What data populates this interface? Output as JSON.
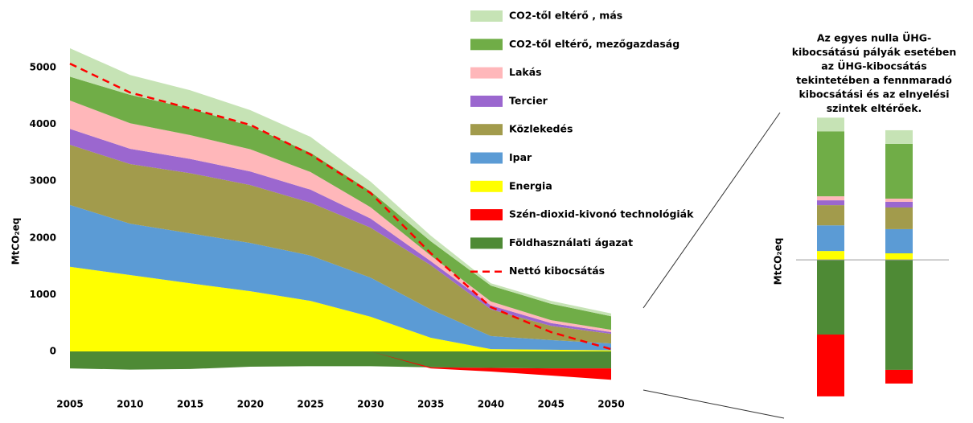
{
  "chart_data": [
    {
      "type": "area",
      "y_label": "MtCO₂eq",
      "x": [
        2005,
        2010,
        2015,
        2020,
        2025,
        2030,
        2035,
        2040,
        2045,
        2050
      ],
      "xlim": [
        2005,
        2050
      ],
      "ylim": [
        -700,
        5400
      ],
      "yticks": [
        0,
        1000,
        2000,
        3000,
        4000,
        5000
      ],
      "grid": false,
      "legend": "right",
      "series": [
        {
          "name": "CO2-től eltérő , más",
          "color": "#c6e3b5",
          "values": [
            500,
            350,
            320,
            280,
            280,
            170,
            100,
            40,
            50,
            50
          ]
        },
        {
          "name": "CO2-től eltérő, mezőgazdaság",
          "color": "#70ad47",
          "values": [
            420,
            500,
            470,
            410,
            340,
            280,
            250,
            280,
            290,
            240
          ]
        },
        {
          "name": "Lakás",
          "color": "#ffb7ba",
          "values": [
            500,
            450,
            420,
            390,
            310,
            200,
            100,
            70,
            50,
            40
          ]
        },
        {
          "name": "Tercier",
          "color": "#9b67cf",
          "values": [
            280,
            270,
            250,
            240,
            230,
            160,
            70,
            70,
            50,
            30
          ]
        },
        {
          "name": "Közlekedés",
          "color": "#a29b4c",
          "values": [
            1060,
            1050,
            1060,
            1020,
            930,
            880,
            780,
            470,
            250,
            170
          ]
        },
        {
          "name": "Ipar",
          "color": "#5b9bd5",
          "values": [
            1090,
            905,
            880,
            850,
            800,
            690,
            500,
            230,
            170,
            120
          ]
        },
        {
          "name": "Energia",
          "color": "#ffff00",
          "values": [
            1490,
            1345,
            1200,
            1060,
            890,
            610,
            240,
            40,
            30,
            20
          ]
        },
        {
          "name": "Szén-dioxid-kivonó technológiák",
          "color": "#ff0000",
          "values": [
            0,
            0,
            0,
            0,
            0,
            0,
            -20,
            -65,
            -125,
            -200
          ]
        },
        {
          "name": "Földhasználati ágazat",
          "color": "#4e8a35",
          "values": [
            -300,
            -320,
            -310,
            -270,
            -260,
            -260,
            -280,
            -290,
            -300,
            -300
          ]
        },
        {
          "name": "Nettó kibocsátás",
          "color": "#ff0000",
          "dashed": true,
          "values": [
            5070,
            4560,
            4280,
            3990,
            3470,
            2790,
            1730,
            780,
            340,
            40
          ]
        }
      ]
    },
    {
      "type": "bar",
      "stacked": true,
      "y_label": "MtCO₂eq",
      "annotation": [
        "Az egyes nulla ÜHG-",
        "kibocsátású pályák esetében",
        "az ÜHG-kibocsátás",
        "tekintetében a fennmaradó",
        "kibocsátási és az elnyelési",
        "szintek eltérőek."
      ],
      "categories": [
        null,
        null
      ],
      "ylim": [
        -745,
        700
      ],
      "series": [
        {
          "color": "#c6e3b5",
          "values": [
            65,
            65
          ]
        },
        {
          "color": "#70ad47",
          "values": [
            309,
            260
          ]
        },
        {
          "color": "#ffb7ba",
          "values": [
            19,
            15
          ]
        },
        {
          "color": "#9b67cf",
          "values": [
            23,
            27
          ]
        },
        {
          "color": "#a29b4c",
          "values": [
            96,
            103
          ]
        },
        {
          "color": "#5b9bd5",
          "values": [
            122,
            115
          ]
        },
        {
          "color": "#ffff00",
          "values": [
            42,
            31
          ]
        },
        {
          "color": "#ff0000",
          "values": [
            -294,
            -65
          ]
        },
        {
          "color": "#4e8a35",
          "values": [
            -355,
            -523
          ]
        }
      ]
    }
  ]
}
